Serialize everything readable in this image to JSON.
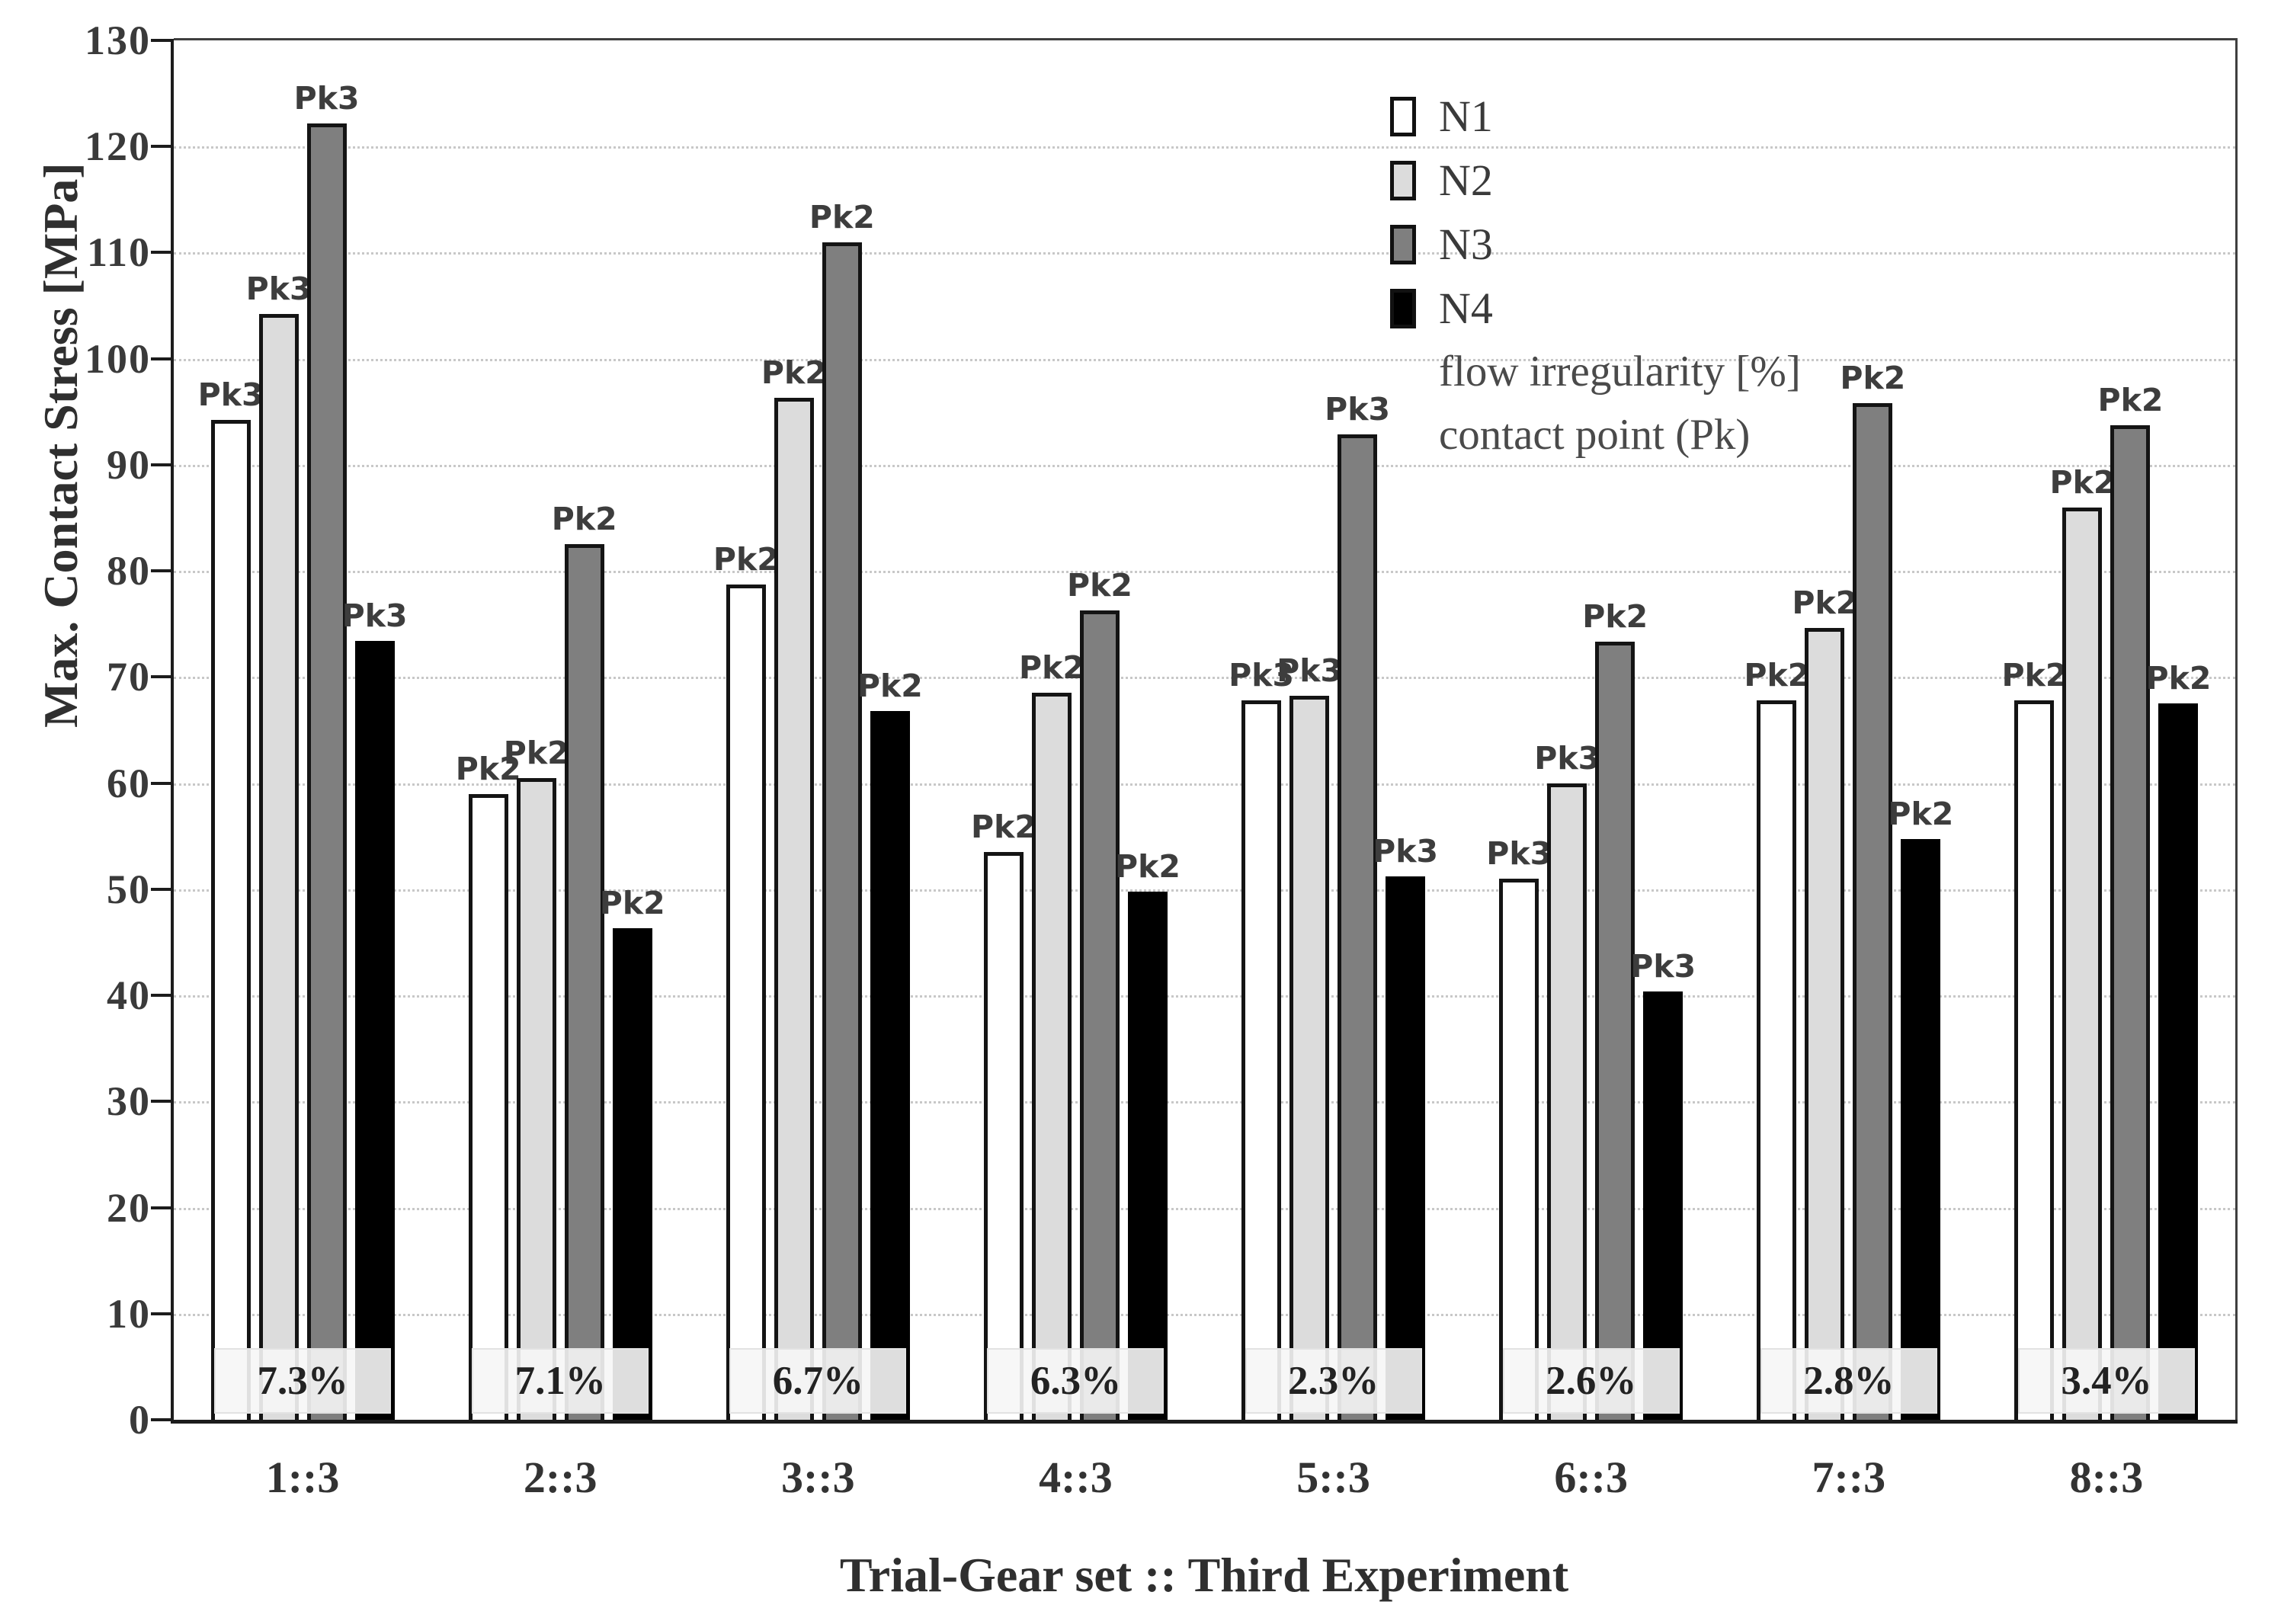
{
  "figure": {
    "ylabel": "Max. Contact Stress [MPa]",
    "xlabel": "Trial-Gear set :: Third Experiment"
  },
  "chart_data": {
    "type": "bar",
    "title": "",
    "xlabel": "Trial-Gear set :: Third Experiment",
    "ylabel": "Max. Contact Stress [MPa]",
    "ylim": [
      0,
      130
    ],
    "ytick_step": 10,
    "grid": "horizontal-dotted",
    "legend_position": "top-center-inside",
    "categories": [
      "1::3",
      "2::3",
      "3::3",
      "4::3",
      "5::3",
      "6::3",
      "7::3",
      "8::3"
    ],
    "series": [
      {
        "name": "N1",
        "color": "#ffffff",
        "values": [
          94.2,
          59.0,
          78.7,
          53.5,
          67.8,
          51.0,
          67.8,
          67.8
        ],
        "contact_points": [
          "Pk3",
          "Pk2",
          "Pk2",
          "Pk2",
          "Pk3",
          "Pk3",
          "Pk2",
          "Pk2"
        ]
      },
      {
        "name": "N2",
        "color": "#dcdcdc",
        "values": [
          104.2,
          60.5,
          96.3,
          68.5,
          68.2,
          60.0,
          74.6,
          86.0
        ],
        "contact_points": [
          "Pk3",
          "Pk2",
          "Pk2",
          "Pk2",
          "Pk3",
          "Pk3",
          "Pk2",
          "Pk2"
        ]
      },
      {
        "name": "N3",
        "color": "#7f7f7f",
        "values": [
          122.2,
          82.5,
          111.0,
          76.3,
          92.9,
          73.3,
          95.8,
          93.7
        ],
        "contact_points": [
          "Pk3",
          "Pk2",
          "Pk2",
          "Pk2",
          "Pk3",
          "Pk2",
          "Pk2",
          "Pk2"
        ]
      },
      {
        "name": "N4",
        "color": "#000000",
        "values": [
          73.4,
          46.3,
          66.8,
          49.8,
          51.2,
          40.4,
          54.7,
          67.5
        ],
        "contact_points": [
          "Pk3",
          "Pk2",
          "Pk2",
          "Pk2",
          "Pk3",
          "Pk3",
          "Pk2",
          "Pk2"
        ]
      }
    ],
    "flow_irregularity": [
      "7.3%",
      "7.1%",
      "6.7%",
      "6.3%",
      "2.3%",
      "2.6%",
      "2.8%",
      "3.4%"
    ],
    "legend_extra_lines": [
      "flow irregularity [%]",
      "contact point (Pk)"
    ]
  }
}
